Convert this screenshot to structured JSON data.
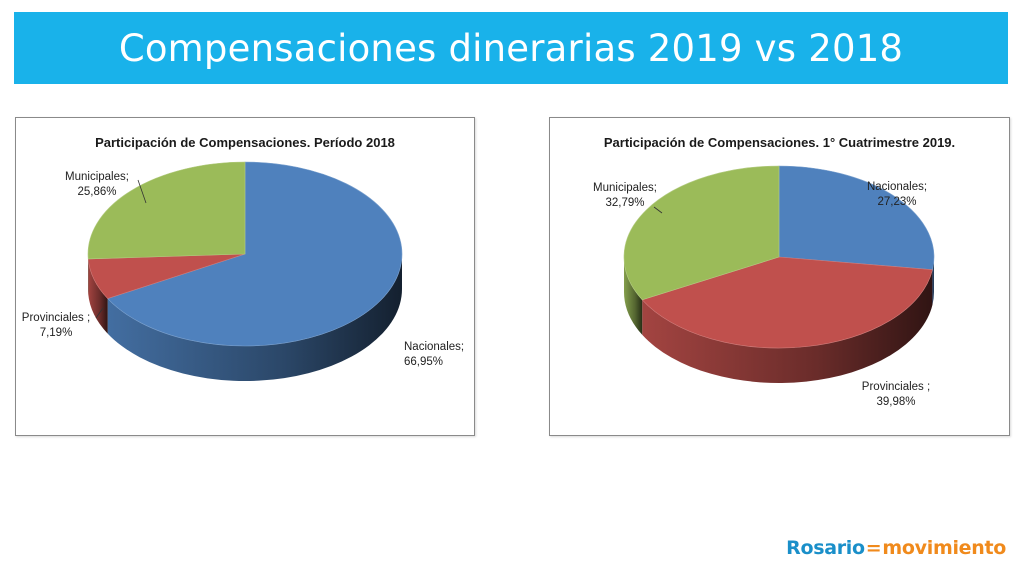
{
  "page_title": "Compensaciones dinerarias  2019 vs 2018",
  "brand": {
    "part1": "Rosario",
    "separator": "=",
    "part2": "movimiento"
  },
  "colors": {
    "title_bar": "#19b2ea",
    "nacionales": "#4f81bd",
    "provinciales": "#c0504d",
    "municipales": "#9bbb59"
  },
  "chart_data": [
    {
      "type": "pie",
      "title": "Participación de Compensaciones. Período 2018",
      "slices": [
        {
          "name": "Nacionales",
          "value": 66.95,
          "label": [
            "Nacionales;",
            "66,95%"
          ]
        },
        {
          "name": "Provinciales",
          "value": 7.19,
          "label": [
            "Provinciales ;",
            "7,19%"
          ]
        },
        {
          "name": "Municipales",
          "value": 25.86,
          "label": [
            "Municipales;",
            "25,86%"
          ]
        }
      ]
    },
    {
      "type": "pie",
      "title": "Participación de Compensaciones. 1° Cuatrimestre 2019.",
      "slices": [
        {
          "name": "Nacionales",
          "value": 27.23,
          "label": [
            "Nacionales;",
            "27,23%"
          ]
        },
        {
          "name": "Provinciales",
          "value": 39.98,
          "label": [
            "Provinciales ;",
            "39,98%"
          ]
        },
        {
          "name": "Municipales",
          "value": 32.79,
          "label": [
            "Municipales;",
            "32,79%"
          ]
        }
      ]
    }
  ]
}
